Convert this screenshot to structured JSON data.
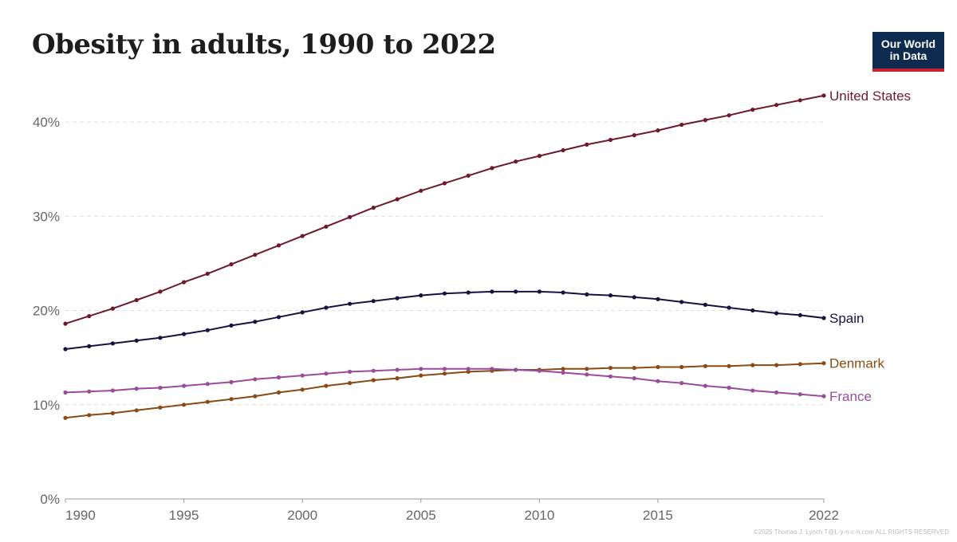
{
  "title": "Obesity in adults, 1990 to 2022",
  "logo": {
    "line1": "Our World",
    "line2": "in Data"
  },
  "copyright": "©2025 Thomas J. Lynch T@L-y-n-c-h.com ALL RIGHTS RESERVED",
  "colors": {
    "United States": "#6e1a2c",
    "Spain": "#14143f",
    "Denmark": "#8a4a14",
    "France": "#9a4b9c",
    "grid": "#dddddd",
    "axis": "#999999",
    "logo_bg": "#0e2a4f",
    "logo_bar": "#c8242f"
  },
  "chart_data": {
    "type": "line",
    "xlim": [
      1990,
      2022
    ],
    "ylim": [
      0,
      40
    ],
    "y_ticks": [
      {
        "value": 0,
        "label": "0%"
      },
      {
        "value": 10,
        "label": "10%"
      },
      {
        "value": 20,
        "label": "20%"
      },
      {
        "value": 30,
        "label": "30%"
      },
      {
        "value": 40,
        "label": "40%"
      }
    ],
    "x_ticks": [
      {
        "value": 1990,
        "label": "1990"
      },
      {
        "value": 1995,
        "label": "1995"
      },
      {
        "value": 2000,
        "label": "2000"
      },
      {
        "value": 2005,
        "label": "2005"
      },
      {
        "value": 2010,
        "label": "2010"
      },
      {
        "value": 2015,
        "label": "2015"
      },
      {
        "value": 2022,
        "label": "2022"
      }
    ],
    "grid": "horizontal-dashed",
    "legend": "inline-right",
    "x": [
      1990,
      1991,
      1992,
      1993,
      1994,
      1995,
      1996,
      1997,
      1998,
      1999,
      2000,
      2001,
      2002,
      2003,
      2004,
      2005,
      2006,
      2007,
      2008,
      2009,
      2010,
      2011,
      2012,
      2013,
      2014,
      2015,
      2016,
      2017,
      2018,
      2019,
      2020,
      2021,
      2022
    ],
    "series": [
      {
        "name": "United States",
        "values": [
          18.6,
          19.4,
          20.2,
          21.1,
          22.0,
          23.0,
          23.9,
          24.9,
          25.9,
          26.9,
          27.9,
          28.9,
          29.9,
          30.9,
          31.8,
          32.7,
          33.5,
          34.3,
          35.1,
          35.8,
          36.4,
          37.0,
          37.6,
          38.1,
          38.6,
          39.1,
          39.7,
          40.2,
          40.7,
          41.3,
          41.8,
          42.3,
          42.8
        ]
      },
      {
        "name": "Spain",
        "values": [
          15.9,
          16.2,
          16.5,
          16.8,
          17.1,
          17.5,
          17.9,
          18.4,
          18.8,
          19.3,
          19.8,
          20.3,
          20.7,
          21.0,
          21.3,
          21.6,
          21.8,
          21.9,
          22.0,
          22.0,
          22.0,
          21.9,
          21.7,
          21.6,
          21.4,
          21.2,
          20.9,
          20.6,
          20.3,
          20.0,
          19.7,
          19.5,
          19.2
        ]
      },
      {
        "name": "Denmark",
        "values": [
          8.6,
          8.9,
          9.1,
          9.4,
          9.7,
          10.0,
          10.3,
          10.6,
          10.9,
          11.3,
          11.6,
          12.0,
          12.3,
          12.6,
          12.8,
          13.1,
          13.3,
          13.5,
          13.6,
          13.7,
          13.7,
          13.8,
          13.8,
          13.9,
          13.9,
          14.0,
          14.0,
          14.1,
          14.1,
          14.2,
          14.2,
          14.3,
          14.4
        ]
      },
      {
        "name": "France",
        "values": [
          11.3,
          11.4,
          11.5,
          11.7,
          11.8,
          12.0,
          12.2,
          12.4,
          12.7,
          12.9,
          13.1,
          13.3,
          13.5,
          13.6,
          13.7,
          13.8,
          13.8,
          13.8,
          13.8,
          13.7,
          13.6,
          13.4,
          13.2,
          13.0,
          12.8,
          12.5,
          12.3,
          12.0,
          11.8,
          11.5,
          11.3,
          11.1,
          10.9
        ]
      }
    ]
  }
}
